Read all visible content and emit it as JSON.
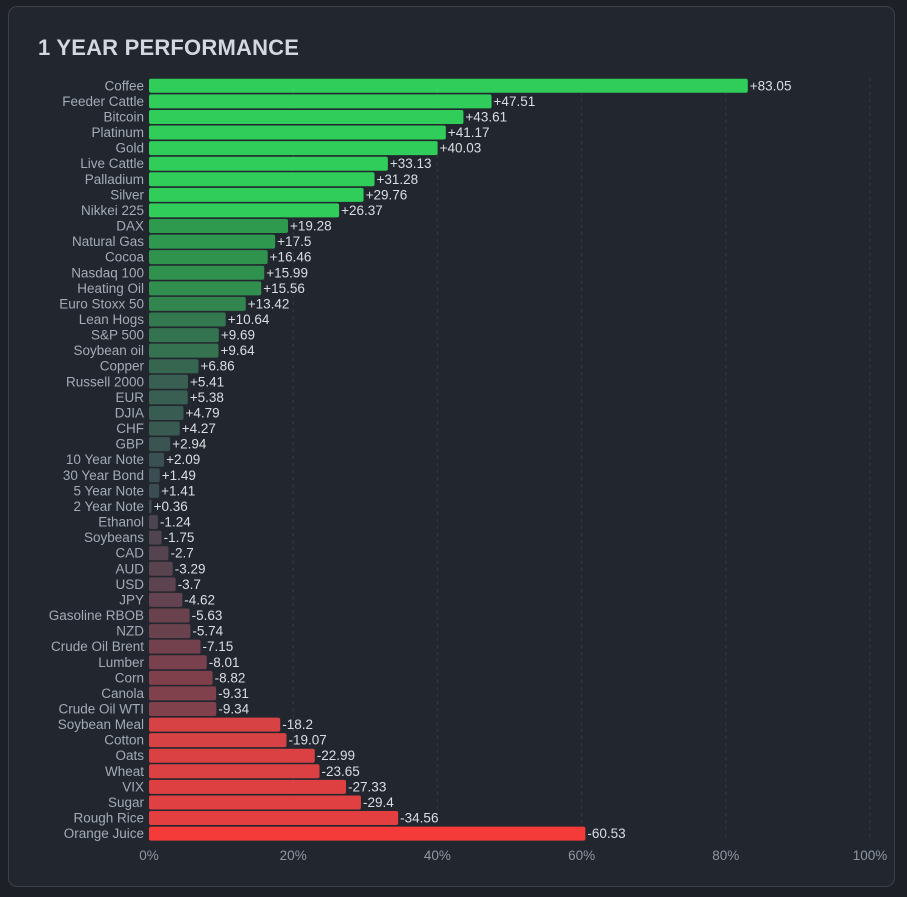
{
  "chart_data": {
    "type": "bar",
    "orientation": "horizontal",
    "title": "1 YEAR PERFORMANCE",
    "xlabel": "",
    "ylabel": "",
    "xlim": [
      0,
      100
    ],
    "xticks": [
      "0%",
      "20%",
      "40%",
      "60%",
      "80%",
      "100%"
    ],
    "grid": true,
    "note": "bar length shows absolute value of percentage change",
    "categories": [
      "Coffee",
      "Feeder Cattle",
      "Bitcoin",
      "Platinum",
      "Gold",
      "Live Cattle",
      "Palladium",
      "Silver",
      "Nikkei 225",
      "DAX",
      "Natural Gas",
      "Cocoa",
      "Nasdaq 100",
      "Heating Oil",
      "Euro Stoxx 50",
      "Lean Hogs",
      "S&P 500",
      "Soybean oil",
      "Copper",
      "Russell 2000",
      "EUR",
      "DJIA",
      "CHF",
      "GBP",
      "10 Year Note",
      "30 Year Bond",
      "5 Year Note",
      "2 Year Note",
      "Ethanol",
      "Soybeans",
      "CAD",
      "AUD",
      "USD",
      "JPY",
      "Gasoline RBOB",
      "NZD",
      "Crude Oil Brent",
      "Lumber",
      "Corn",
      "Canola",
      "Crude Oil WTI",
      "Soybean Meal",
      "Cotton",
      "Oats",
      "Wheat",
      "VIX",
      "Sugar",
      "Rough Rice",
      "Orange Juice"
    ],
    "values": [
      83.05,
      47.51,
      43.61,
      41.17,
      40.03,
      33.13,
      31.28,
      29.76,
      26.37,
      19.28,
      17.5,
      16.46,
      15.99,
      15.56,
      13.42,
      10.64,
      9.69,
      9.64,
      6.86,
      5.41,
      5.38,
      4.79,
      4.27,
      2.94,
      2.09,
      1.49,
      1.41,
      0.36,
      -1.24,
      -1.75,
      -2.7,
      -3.29,
      -3.7,
      -4.62,
      -5.63,
      -5.74,
      -7.15,
      -8.01,
      -8.82,
      -9.31,
      -9.34,
      -18.2,
      -19.07,
      -22.99,
      -23.65,
      -27.33,
      -29.4,
      -34.56,
      -60.53
    ],
    "value_labels": [
      "+83.05",
      "+47.51",
      "+43.61",
      "+41.17",
      "+40.03",
      "+33.13",
      "+31.28",
      "+29.76",
      "+26.37",
      "+19.28",
      "+17.5",
      "+16.46",
      "+15.99",
      "+15.56",
      "+13.42",
      "+10.64",
      "+9.69",
      "+9.64",
      "+6.86",
      "+5.41",
      "+5.38",
      "+4.79",
      "+4.27",
      "+2.94",
      "+2.09",
      "+1.49",
      "+1.41",
      "+0.36",
      "-1.24",
      "-1.75",
      "-2.7",
      "-3.29",
      "-3.7",
      "-4.62",
      "-5.63",
      "-5.74",
      "-7.15",
      "-8.01",
      "-8.82",
      "-9.31",
      "-9.34",
      "-18.2",
      "-19.07",
      "-22.99",
      "-23.65",
      "-27.33",
      "-29.4",
      "-34.56",
      "-60.53"
    ],
    "colors": {
      "strong_positive": "#30cd5a",
      "positive": "#2e9a4e",
      "neutral": "#3c4652",
      "negative": "#80404c",
      "strong_negative": "#f53a3a"
    }
  }
}
